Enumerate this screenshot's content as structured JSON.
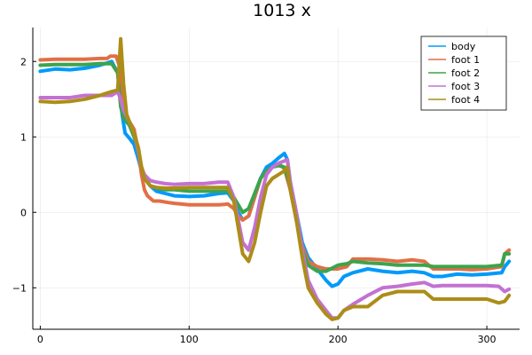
{
  "chart_data": {
    "type": "line",
    "title": "1013 x",
    "xlabel": "",
    "ylabel": "",
    "xlim": [
      -5,
      322
    ],
    "ylim": [
      -1.55,
      2.45
    ],
    "xticks": [
      0,
      100,
      200,
      300
    ],
    "yticks": [
      2,
      1,
      0,
      -1
    ],
    "ytick_labels": [
      "2",
      "1",
      "0",
      "−1"
    ],
    "grid": true,
    "legend_position": "top-right",
    "series": [
      {
        "name": "body",
        "color": "#009AFA",
        "points": [
          [
            0,
            1.87
          ],
          [
            10,
            1.9
          ],
          [
            20,
            1.89
          ],
          [
            30,
            1.91
          ],
          [
            40,
            1.95
          ],
          [
            48,
            2.0
          ],
          [
            52,
            1.85
          ],
          [
            55,
            1.3
          ],
          [
            57,
            1.05
          ],
          [
            60,
            0.98
          ],
          [
            63,
            0.9
          ],
          [
            66,
            0.7
          ],
          [
            68,
            0.55
          ],
          [
            70,
            0.45
          ],
          [
            74,
            0.35
          ],
          [
            78,
            0.28
          ],
          [
            84,
            0.25
          ],
          [
            90,
            0.22
          ],
          [
            100,
            0.21
          ],
          [
            110,
            0.22
          ],
          [
            120,
            0.25
          ],
          [
            126,
            0.26
          ],
          [
            130,
            0.15
          ],
          [
            133,
            0.0
          ],
          [
            136,
            -0.1
          ],
          [
            140,
            -0.05
          ],
          [
            144,
            0.2
          ],
          [
            148,
            0.45
          ],
          [
            152,
            0.6
          ],
          [
            156,
            0.65
          ],
          [
            160,
            0.72
          ],
          [
            164,
            0.78
          ],
          [
            166,
            0.7
          ],
          [
            168,
            0.4
          ],
          [
            172,
            0.0
          ],
          [
            176,
            -0.4
          ],
          [
            180,
            -0.6
          ],
          [
            186,
            -0.75
          ],
          [
            192,
            -0.9
          ],
          [
            196,
            -0.98
          ],
          [
            200,
            -0.95
          ],
          [
            204,
            -0.85
          ],
          [
            210,
            -0.8
          ],
          [
            220,
            -0.75
          ],
          [
            230,
            -0.78
          ],
          [
            240,
            -0.8
          ],
          [
            250,
            -0.78
          ],
          [
            258,
            -0.8
          ],
          [
            264,
            -0.85
          ],
          [
            270,
            -0.85
          ],
          [
            280,
            -0.82
          ],
          [
            290,
            -0.83
          ],
          [
            300,
            -0.82
          ],
          [
            310,
            -0.8
          ],
          [
            312,
            -0.72
          ],
          [
            315,
            -0.65
          ]
        ]
      },
      {
        "name": "foot 1",
        "color": "#E26F46",
        "points": [
          [
            0,
            2.02
          ],
          [
            10,
            2.03
          ],
          [
            20,
            2.03
          ],
          [
            30,
            2.03
          ],
          [
            40,
            2.04
          ],
          [
            45,
            2.04
          ],
          [
            47,
            2.07
          ],
          [
            51,
            2.07
          ],
          [
            53,
            1.95
          ],
          [
            55,
            1.5
          ],
          [
            57,
            1.3
          ],
          [
            60,
            1.2
          ],
          [
            63,
            1.1
          ],
          [
            66,
            0.8
          ],
          [
            68,
            0.5
          ],
          [
            70,
            0.3
          ],
          [
            72,
            0.22
          ],
          [
            76,
            0.15
          ],
          [
            80,
            0.15
          ],
          [
            86,
            0.13
          ],
          [
            90,
            0.12
          ],
          [
            100,
            0.1
          ],
          [
            110,
            0.1
          ],
          [
            120,
            0.1
          ],
          [
            126,
            0.11
          ],
          [
            130,
            0.05
          ],
          [
            133,
            -0.05
          ],
          [
            136,
            -0.1
          ],
          [
            140,
            -0.05
          ],
          [
            144,
            0.2
          ],
          [
            148,
            0.45
          ],
          [
            152,
            0.55
          ],
          [
            156,
            0.6
          ],
          [
            160,
            0.65
          ],
          [
            164,
            0.58
          ],
          [
            168,
            0.3
          ],
          [
            172,
            -0.1
          ],
          [
            176,
            -0.45
          ],
          [
            180,
            -0.65
          ],
          [
            186,
            -0.72
          ],
          [
            192,
            -0.75
          ],
          [
            200,
            -0.75
          ],
          [
            206,
            -0.72
          ],
          [
            210,
            -0.62
          ],
          [
            220,
            -0.62
          ],
          [
            230,
            -0.63
          ],
          [
            240,
            -0.65
          ],
          [
            250,
            -0.63
          ],
          [
            258,
            -0.65
          ],
          [
            264,
            -0.75
          ],
          [
            270,
            -0.75
          ],
          [
            280,
            -0.75
          ],
          [
            290,
            -0.76
          ],
          [
            300,
            -0.75
          ],
          [
            310,
            -0.72
          ],
          [
            312,
            -0.55
          ],
          [
            315,
            -0.5
          ]
        ]
      },
      {
        "name": "foot 2",
        "color": "#3CA44D",
        "points": [
          [
            0,
            1.95
          ],
          [
            10,
            1.96
          ],
          [
            20,
            1.96
          ],
          [
            30,
            1.96
          ],
          [
            40,
            1.97
          ],
          [
            48,
            1.97
          ],
          [
            52,
            1.85
          ],
          [
            54,
            1.4
          ],
          [
            56,
            1.25
          ],
          [
            60,
            1.15
          ],
          [
            63,
            1.0
          ],
          [
            66,
            0.8
          ],
          [
            68,
            0.6
          ],
          [
            70,
            0.45
          ],
          [
            74,
            0.35
          ],
          [
            78,
            0.32
          ],
          [
            84,
            0.3
          ],
          [
            90,
            0.3
          ],
          [
            100,
            0.28
          ],
          [
            110,
            0.28
          ],
          [
            120,
            0.28
          ],
          [
            126,
            0.28
          ],
          [
            130,
            0.2
          ],
          [
            133,
            0.1
          ],
          [
            136,
            0.0
          ],
          [
            140,
            0.05
          ],
          [
            144,
            0.25
          ],
          [
            148,
            0.45
          ],
          [
            152,
            0.55
          ],
          [
            156,
            0.6
          ],
          [
            160,
            0.62
          ],
          [
            164,
            0.6
          ],
          [
            168,
            0.35
          ],
          [
            172,
            -0.1
          ],
          [
            176,
            -0.5
          ],
          [
            180,
            -0.7
          ],
          [
            186,
            -0.78
          ],
          [
            192,
            -0.78
          ],
          [
            200,
            -0.7
          ],
          [
            206,
            -0.68
          ],
          [
            210,
            -0.65
          ],
          [
            220,
            -0.67
          ],
          [
            230,
            -0.68
          ],
          [
            240,
            -0.7
          ],
          [
            250,
            -0.7
          ],
          [
            258,
            -0.7
          ],
          [
            264,
            -0.72
          ],
          [
            270,
            -0.72
          ],
          [
            280,
            -0.72
          ],
          [
            290,
            -0.72
          ],
          [
            300,
            -0.72
          ],
          [
            310,
            -0.7
          ],
          [
            312,
            -0.55
          ],
          [
            315,
            -0.55
          ]
        ]
      },
      {
        "name": "foot 3",
        "color": "#C371D2",
        "points": [
          [
            0,
            1.52
          ],
          [
            10,
            1.52
          ],
          [
            20,
            1.52
          ],
          [
            30,
            1.55
          ],
          [
            40,
            1.55
          ],
          [
            48,
            1.55
          ],
          [
            52,
            1.6
          ],
          [
            54,
            1.5
          ],
          [
            56,
            1.35
          ],
          [
            60,
            1.2
          ],
          [
            63,
            1.05
          ],
          [
            66,
            0.8
          ],
          [
            68,
            0.6
          ],
          [
            70,
            0.5
          ],
          [
            74,
            0.42
          ],
          [
            78,
            0.4
          ],
          [
            84,
            0.38
          ],
          [
            90,
            0.37
          ],
          [
            100,
            0.38
          ],
          [
            110,
            0.38
          ],
          [
            120,
            0.4
          ],
          [
            126,
            0.4
          ],
          [
            130,
            0.2
          ],
          [
            133,
            -0.1
          ],
          [
            136,
            -0.4
          ],
          [
            140,
            -0.5
          ],
          [
            144,
            -0.2
          ],
          [
            148,
            0.2
          ],
          [
            152,
            0.5
          ],
          [
            156,
            0.6
          ],
          [
            160,
            0.65
          ],
          [
            164,
            0.68
          ],
          [
            166,
            0.7
          ],
          [
            168,
            0.4
          ],
          [
            172,
            0.0
          ],
          [
            176,
            -0.5
          ],
          [
            180,
            -0.9
          ],
          [
            186,
            -1.15
          ],
          [
            192,
            -1.3
          ],
          [
            196,
            -1.4
          ],
          [
            200,
            -1.4
          ],
          [
            204,
            -1.3
          ],
          [
            210,
            -1.22
          ],
          [
            220,
            -1.1
          ],
          [
            230,
            -1.0
          ],
          [
            240,
            -0.98
          ],
          [
            250,
            -0.95
          ],
          [
            258,
            -0.93
          ],
          [
            264,
            -0.98
          ],
          [
            270,
            -0.97
          ],
          [
            280,
            -0.97
          ],
          [
            290,
            -0.97
          ],
          [
            300,
            -0.97
          ],
          [
            308,
            -0.98
          ],
          [
            312,
            -1.05
          ],
          [
            315,
            -1.02
          ]
        ]
      },
      {
        "name": "foot 4",
        "color": "#AC8D18",
        "points": [
          [
            0,
            1.47
          ],
          [
            10,
            1.46
          ],
          [
            20,
            1.47
          ],
          [
            30,
            1.5
          ],
          [
            40,
            1.55
          ],
          [
            48,
            1.6
          ],
          [
            52,
            1.62
          ],
          [
            54,
            2.3
          ],
          [
            56,
            1.7
          ],
          [
            58,
            1.3
          ],
          [
            60,
            1.2
          ],
          [
            63,
            1.05
          ],
          [
            66,
            0.85
          ],
          [
            68,
            0.6
          ],
          [
            70,
            0.45
          ],
          [
            74,
            0.35
          ],
          [
            78,
            0.33
          ],
          [
            84,
            0.32
          ],
          [
            90,
            0.32
          ],
          [
            100,
            0.33
          ],
          [
            110,
            0.33
          ],
          [
            120,
            0.33
          ],
          [
            126,
            0.33
          ],
          [
            130,
            0.15
          ],
          [
            133,
            -0.2
          ],
          [
            136,
            -0.55
          ],
          [
            140,
            -0.65
          ],
          [
            144,
            -0.4
          ],
          [
            148,
            0.0
          ],
          [
            152,
            0.35
          ],
          [
            156,
            0.45
          ],
          [
            160,
            0.5
          ],
          [
            164,
            0.55
          ],
          [
            166,
            0.6
          ],
          [
            168,
            0.3
          ],
          [
            172,
            -0.1
          ],
          [
            176,
            -0.6
          ],
          [
            180,
            -1.0
          ],
          [
            186,
            -1.2
          ],
          [
            192,
            -1.35
          ],
          [
            196,
            -1.42
          ],
          [
            200,
            -1.4
          ],
          [
            204,
            -1.3
          ],
          [
            210,
            -1.25
          ],
          [
            220,
            -1.25
          ],
          [
            230,
            -1.1
          ],
          [
            240,
            -1.05
          ],
          [
            250,
            -1.05
          ],
          [
            258,
            -1.05
          ],
          [
            264,
            -1.15
          ],
          [
            270,
            -1.15
          ],
          [
            280,
            -1.15
          ],
          [
            290,
            -1.15
          ],
          [
            300,
            -1.15
          ],
          [
            308,
            -1.2
          ],
          [
            312,
            -1.18
          ],
          [
            315,
            -1.1
          ]
        ]
      }
    ]
  }
}
